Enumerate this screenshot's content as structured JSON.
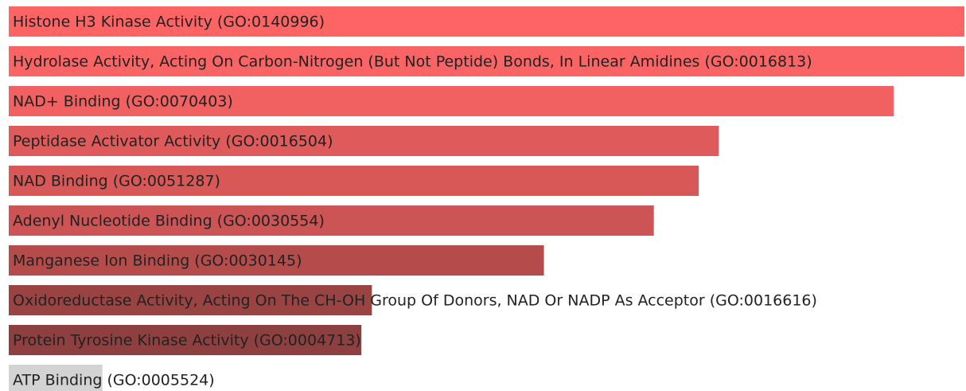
{
  "chart_data": {
    "type": "hbar",
    "categories": [
      "Histone H3 Kinase Activity (GO:0140996)",
      "Hydrolase Activity, Acting On Carbon-Nitrogen (But Not Peptide) Bonds, In Linear Amidines (GO:0016813)",
      "NAD+ Binding (GO:0070403)",
      "Peptidase Activator Activity (GO:0016504)",
      "NAD Binding (GO:0051287)",
      "Adenyl Nucleotide Binding (GO:0030554)",
      "Manganese Ion Binding (GO:0030145)",
      "Oxidoreductase Activity, Acting On The CH-OH Group Of Donors, NAD Or NADP As Acceptor (GO:0016616)",
      "Protein Tyrosine Kinase Activity (GO:0004713)",
      "ATP Binding (GO:0005524)"
    ],
    "values": [
      100,
      100,
      92.6,
      74.3,
      72.2,
      67.5,
      56.0,
      38.0,
      36.9,
      9.8
    ],
    "colors": [
      "#fe6464",
      "#fb6464",
      "#f26161",
      "#df5b5b",
      "#d85858",
      "#cd5454",
      "#b54c4c",
      "#9a4343",
      "#8e3f3f",
      "#d3d3d3"
    ],
    "xlim": [
      0,
      100
    ]
  }
}
